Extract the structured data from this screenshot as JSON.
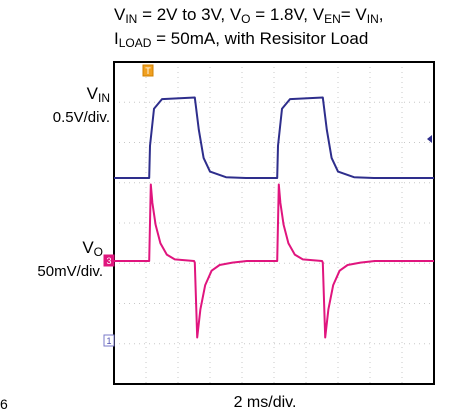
{
  "title": {
    "line1": [
      {
        "t": "V"
      },
      {
        "sub": "IN"
      },
      {
        "t": " = 2V to 3V, V"
      },
      {
        "sub": "O"
      },
      {
        "t": " = 1.8V, V"
      },
      {
        "sub": "EN"
      },
      {
        "t": "= V"
      },
      {
        "sub": "IN"
      },
      {
        "t": ","
      }
    ],
    "line2": [
      {
        "t": "I"
      },
      {
        "sub": "LOAD"
      },
      {
        "t": " = 50mA, with Resisitor Load"
      }
    ]
  },
  "channels": {
    "ch1": {
      "name": "V",
      "name_sub": "IN",
      "scale": "0.5V/div.",
      "color": "#2e2e8c",
      "marker": "1"
    },
    "ch3": {
      "name": "V",
      "name_sub": "O",
      "scale": "50mV/div.",
      "color": "#e0157e",
      "marker": "3"
    }
  },
  "trigger_marker": "T",
  "x_scale_label": "2 ms/div.",
  "corner_text": "6",
  "chart_data": {
    "type": "line",
    "x_unit": "ms",
    "xlim": [
      0,
      20
    ],
    "divisions": {
      "x": 10,
      "y": 8
    },
    "grid": true,
    "series": [
      {
        "name": "VIN",
        "y_unit": "V",
        "x": [
          0,
          2.2,
          2.25,
          2.5,
          3,
          5.05,
          5.3,
          5.6,
          6,
          7,
          8.25,
          10.2,
          10.25,
          10.5,
          11,
          13.05,
          13.3,
          13.6,
          14,
          15,
          16.25,
          20
        ],
        "y": [
          2.0,
          2.0,
          2.4,
          2.86,
          2.98,
          3.0,
          2.6,
          2.25,
          2.08,
          2.01,
          2.0,
          2.0,
          2.4,
          2.86,
          2.98,
          3.0,
          2.6,
          2.25,
          2.08,
          2.01,
          2.0,
          2.0
        ]
      },
      {
        "name": "VO",
        "y_unit": "mV (AC deviation)",
        "x": [
          0,
          2.2,
          2.3,
          2.4,
          2.6,
          2.9,
          3.3,
          3.8,
          5.0,
          5.05,
          5.2,
          5.4,
          5.7,
          6.1,
          6.6,
          7.4,
          8.3,
          10.2,
          10.3,
          10.4,
          10.6,
          10.9,
          11.3,
          11.8,
          13.0,
          13.05,
          13.2,
          13.4,
          13.7,
          14.1,
          14.6,
          15.4,
          16.3,
          20
        ],
        "y": [
          0,
          0,
          95,
          72,
          45,
          22,
          8,
          2,
          0,
          -2,
          -95,
          -60,
          -30,
          -12,
          -5,
          -2,
          0,
          0,
          95,
          72,
          45,
          22,
          8,
          2,
          0,
          -2,
          -95,
          -60,
          -30,
          -12,
          -5,
          -2,
          0,
          0
        ]
      }
    ]
  }
}
